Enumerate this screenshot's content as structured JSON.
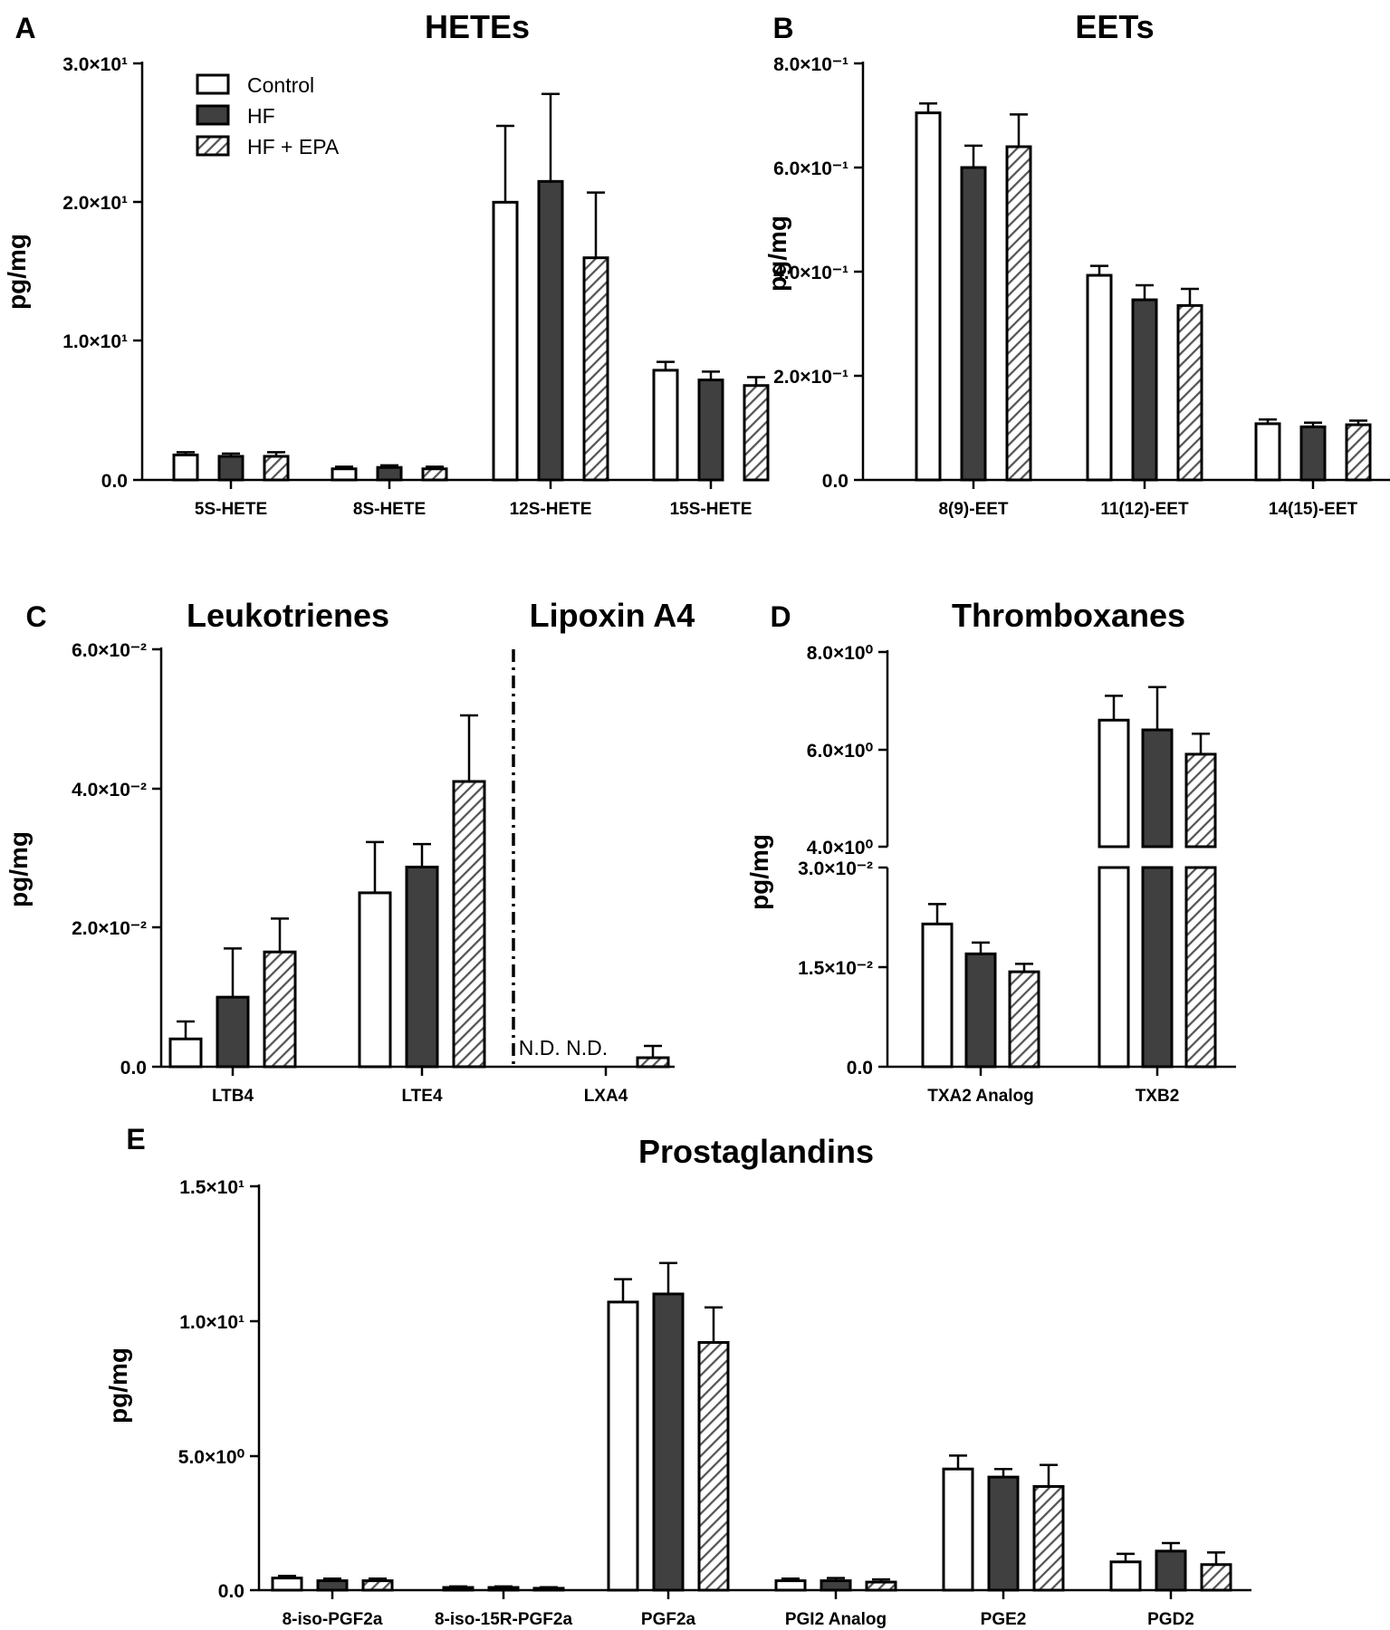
{
  "figure": {
    "groups": [
      "Control",
      "HF",
      "HF + EPA"
    ]
  },
  "chart_data": [
    {
      "panel": "A",
      "title": "HETEs",
      "type": "bar",
      "ylabel": "pg/mg",
      "categories": [
        "5S-HETE",
        "8S-HETE",
        "12S-HETE",
        "15S-HETE"
      ],
      "ylim": [
        0,
        30
      ],
      "ytick_labels": [
        "0.0",
        "1.0×10¹",
        "2.0×10¹",
        "3.0×10¹"
      ],
      "legend": "top-left",
      "series": [
        {
          "name": "Control",
          "values": [
            1.8,
            0.8,
            20.0,
            7.9
          ],
          "errors": [
            0.2,
            0.15,
            5.5,
            0.6
          ]
        },
        {
          "name": "HF",
          "values": [
            1.7,
            0.9,
            21.5,
            7.2
          ],
          "errors": [
            0.2,
            0.15,
            6.3,
            0.6
          ]
        },
        {
          "name": "HF + EPA",
          "values": [
            1.7,
            0.8,
            16.0,
            6.8
          ],
          "errors": [
            0.3,
            0.15,
            4.7,
            0.6
          ]
        }
      ]
    },
    {
      "panel": "B",
      "title": "EETs",
      "type": "bar",
      "ylabel": "pg/mg",
      "categories": [
        "8(9)-EET",
        "11(12)-EET",
        "14(15)-EET"
      ],
      "ylim": [
        0,
        0.8
      ],
      "ytick_labels": [
        "0.0",
        "2.0×10⁻¹",
        "4.0×10⁻¹",
        "6.0×10⁻¹",
        "8.0×10⁻¹"
      ],
      "series": [
        {
          "name": "Control",
          "values": [
            0.705,
            0.393,
            0.108
          ],
          "errors": [
            0.018,
            0.018,
            0.008
          ]
        },
        {
          "name": "HF",
          "values": [
            0.6,
            0.346,
            0.102
          ],
          "errors": [
            0.042,
            0.028,
            0.008
          ]
        },
        {
          "name": "HF + EPA",
          "values": [
            0.64,
            0.335,
            0.106
          ],
          "errors": [
            0.062,
            0.032,
            0.008
          ]
        }
      ]
    },
    {
      "panel": "C",
      "title": "Leukotrienes",
      "title2": "Lipoxin A4",
      "type": "bar",
      "ylabel": "pg/mg",
      "categories": [
        "LTB4",
        "LTE4",
        "LXA4"
      ],
      "ylim": [
        0,
        0.06
      ],
      "ytick_labels": [
        "0.0",
        "2.0×10⁻²",
        "4.0×10⁻²",
        "6.0×10⁻²"
      ],
      "annotation": "N.D. N.D.",
      "series": [
        {
          "name": "Control",
          "values": [
            0.004,
            0.025,
            null
          ],
          "errors": [
            0.0025,
            0.0073,
            null
          ]
        },
        {
          "name": "HF",
          "values": [
            0.01,
            0.0287,
            null
          ],
          "errors": [
            0.007,
            0.0033,
            null
          ]
        },
        {
          "name": "HF + EPA",
          "values": [
            0.0165,
            0.041,
            0.0013
          ],
          "errors": [
            0.0048,
            0.0095,
            0.0017
          ]
        }
      ]
    },
    {
      "panel": "D",
      "title": "Thromboxanes",
      "type": "bar",
      "ylabel": "pg/mg",
      "categories": [
        "TXA2 Analog",
        "TXB2"
      ],
      "y_break": {
        "lower": [
          0,
          0.03
        ],
        "upper": [
          4,
          8
        ]
      },
      "ytick_labels_lower": [
        "0.0",
        "1.5×10⁻²",
        "3.0×10⁻²"
      ],
      "ytick_labels_upper": [
        "4.0×10⁰",
        "6.0×10⁰",
        "8.0×10⁰"
      ],
      "series": [
        {
          "name": "Control",
          "values": [
            0.0215,
            6.6
          ],
          "errors": [
            0.003,
            0.5
          ]
        },
        {
          "name": "HF",
          "values": [
            0.017,
            6.4
          ],
          "errors": [
            0.0017,
            0.88
          ]
        },
        {
          "name": "HF + EPA",
          "values": [
            0.0143,
            5.9
          ],
          "errors": [
            0.0012,
            0.42
          ]
        }
      ]
    },
    {
      "panel": "E",
      "title": "Prostaglandins",
      "type": "bar",
      "ylabel": "pg/mg",
      "categories": [
        "8-iso-PGF2a",
        "8-iso-15R-PGF2a",
        "PGF2a",
        "PGI2 Analog",
        "PGE2",
        "PGD2"
      ],
      "ylim": [
        0,
        15
      ],
      "ytick_labels": [
        "0.0",
        "5.0×10⁰",
        "1.0×10¹",
        "1.5×10¹"
      ],
      "series": [
        {
          "name": "Control",
          "values": [
            0.45,
            0.1,
            10.7,
            0.35,
            4.5,
            1.05
          ],
          "errors": [
            0.08,
            0.04,
            0.85,
            0.08,
            0.5,
            0.3
          ]
        },
        {
          "name": "HF",
          "values": [
            0.35,
            0.1,
            11.0,
            0.35,
            4.2,
            1.45
          ],
          "errors": [
            0.08,
            0.04,
            1.15,
            0.1,
            0.3,
            0.3
          ]
        },
        {
          "name": "HF + EPA",
          "values": [
            0.35,
            0.07,
            9.2,
            0.3,
            3.85,
            0.95
          ],
          "errors": [
            0.08,
            0.04,
            1.3,
            0.1,
            0.8,
            0.45
          ]
        }
      ]
    }
  ]
}
